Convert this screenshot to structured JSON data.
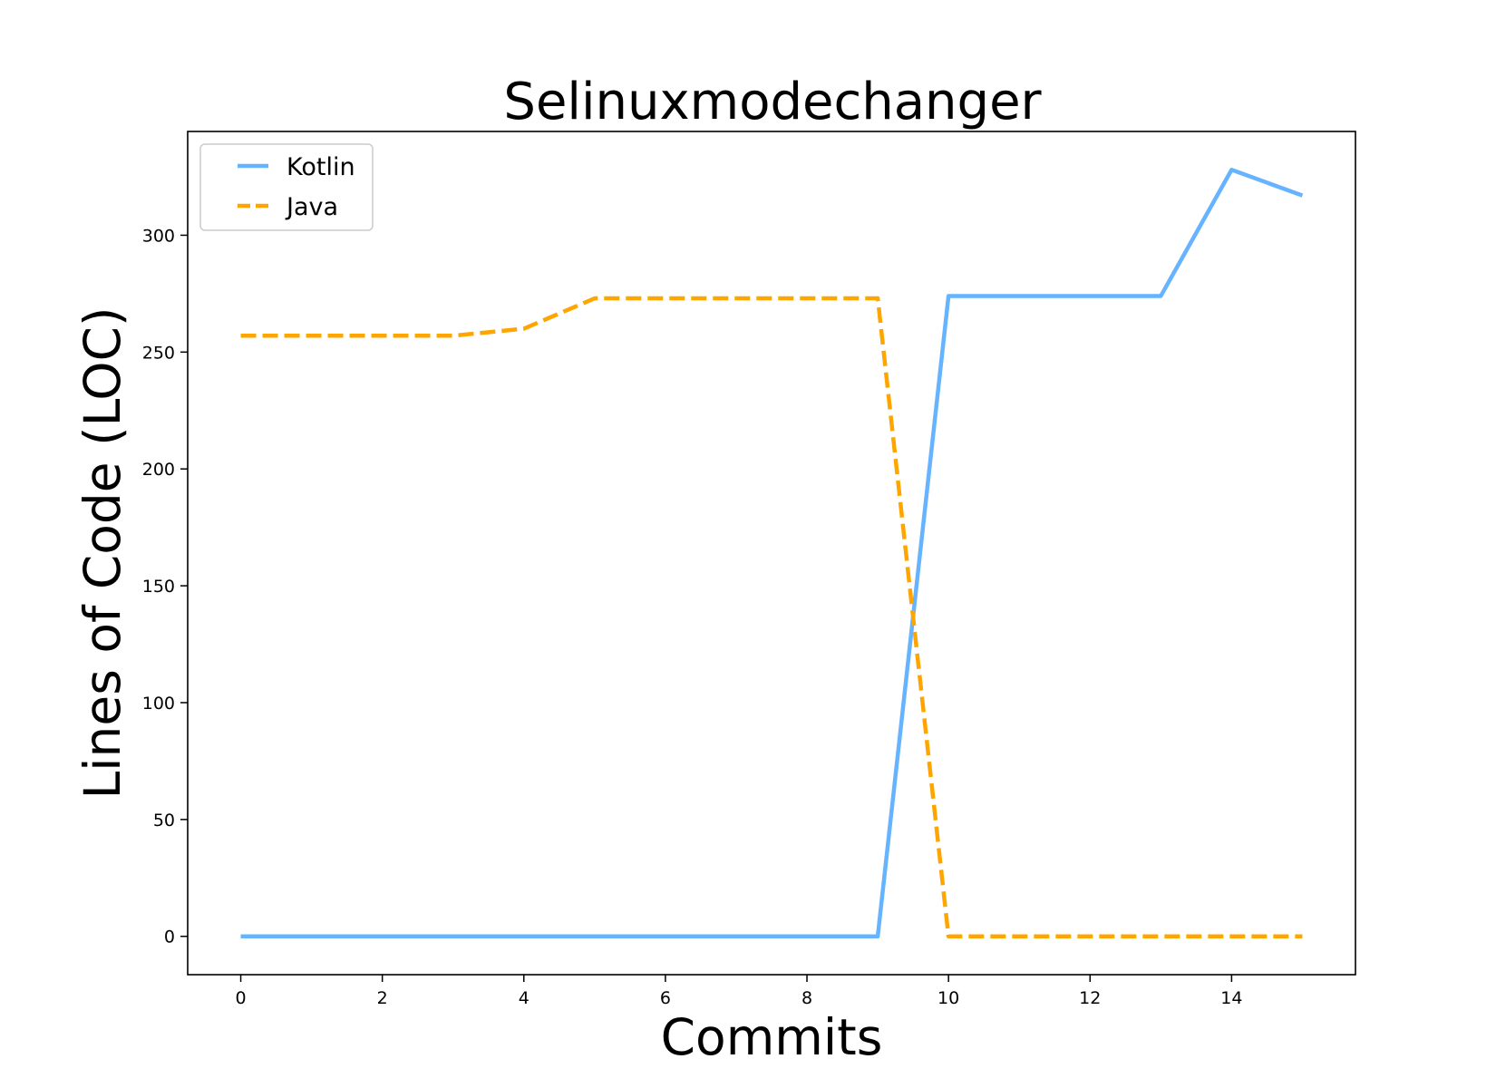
{
  "chart_data": {
    "type": "line",
    "title": "Selinuxmodechanger",
    "xlabel": "Commits",
    "ylabel": "Lines of Code (LOC)",
    "xlim": [
      -0.75,
      15.75
    ],
    "ylim": [
      -16.4,
      344.4
    ],
    "xticks": [
      0,
      2,
      4,
      6,
      8,
      10,
      12,
      14
    ],
    "yticks": [
      0,
      50,
      100,
      150,
      200,
      250,
      300
    ],
    "grid": false,
    "legend_position": "upper left",
    "x": [
      0,
      1,
      2,
      3,
      4,
      5,
      6,
      7,
      8,
      9,
      10,
      11,
      12,
      13,
      14,
      15
    ],
    "series": [
      {
        "name": "Kotlin",
        "color": "#66b3ff",
        "line_style": "solid",
        "values": [
          0,
          0,
          0,
          0,
          0,
          0,
          0,
          0,
          0,
          0,
          274,
          274,
          274,
          274,
          328,
          317
        ]
      },
      {
        "name": "Java",
        "color": "#ffa500",
        "line_style": "dashed",
        "values": [
          257,
          257,
          257,
          257,
          260,
          273,
          273,
          273,
          273,
          273,
          0,
          0,
          0,
          0,
          0,
          0
        ]
      }
    ]
  }
}
